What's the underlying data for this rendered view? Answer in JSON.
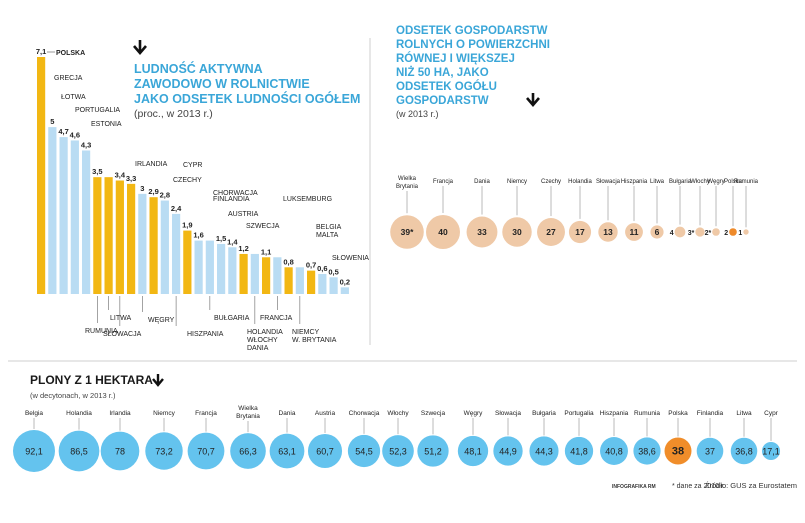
{
  "colors": {
    "blue_bar": "#b9dcf3",
    "gold_bar": "#f2b713",
    "title_blue": "#3aa6d8",
    "bubble_tan": "#efc9a7",
    "bubble_tan_text": "#8a5a2c",
    "bubble_orange": "#ee8a2a",
    "bubble_blue": "#64c3ee",
    "bubble_blue_text": "#0d3a55",
    "highlight_orange": "#f08d2a"
  },
  "icons": {
    "title_arrow": "arrow-down-icon"
  },
  "chart_data": [
    {
      "id": "ludnosc",
      "type": "bar",
      "title_lines": [
        "LUDNOŚĆ AKTYWNA",
        "ZAWODOWO W ROLNICTWIE",
        "JAKO ODSETEK LUDNOŚCI OGÓŁEM"
      ],
      "subtitle": "(proc., w 2013 r.)",
      "ylim": [
        0,
        7.5
      ],
      "categories": [
        "POLSKA",
        "GRECJA",
        "ŁOTWA",
        "PORTUGALIA",
        "ESTONIA",
        "RUMUNIA",
        "LITWA",
        "SŁOWACJA",
        "IRLANDIA",
        "WĘGRY",
        "CZECHY",
        "CYPR",
        "HISZPANIA",
        "CHORWACJA",
        "FINLANDIA",
        "AUSTRIA",
        "BUŁGARIA",
        "SZWECJA",
        "HOLANDIA",
        "WŁOCHY",
        "DANIA",
        "FRANCJA",
        "NIEMCY",
        "W. BRYTANIA",
        "LUKSEMBURG",
        "BELGIA",
        "MALTA",
        "SŁOWENIA"
      ],
      "values": [
        7.1,
        5,
        4.7,
        4.6,
        4.3,
        3.5,
        3.5,
        3.4,
        3.3,
        3,
        2.9,
        2.8,
        2.4,
        1.9,
        1.6,
        1.6,
        1.5,
        1.4,
        1.2,
        1.2,
        1.1,
        1.1,
        0.8,
        0.8,
        0.7,
        0.6,
        0.5,
        0.2
      ],
      "value_labels": [
        "7,1",
        "5",
        "4,7",
        "4,6",
        "4,3",
        "3,5",
        "",
        "3,4",
        "3,3",
        "3",
        "2,9",
        "2,8",
        "2,4",
        "1,9",
        "1,6",
        "",
        "1,5",
        "1,4",
        "1,2",
        "",
        "1,1",
        "",
        "0,8",
        "",
        "0,7",
        "0,6",
        "0,5",
        "0,2"
      ],
      "highlight": [
        true,
        false,
        false,
        false,
        false,
        true,
        true,
        true,
        true,
        false,
        true,
        false,
        false,
        true,
        false,
        false,
        false,
        false,
        true,
        false,
        true,
        false,
        true,
        false,
        true,
        false,
        false,
        false
      ],
      "above_labels": [
        {
          "text": "POLSKA",
          "bar": 0
        },
        {
          "text": "GRECJA",
          "bar": 1
        },
        {
          "text": "ŁOTWA",
          "bar": 2
        },
        {
          "text": "PORTUGALIA",
          "bar": 3
        },
        {
          "text": "ESTONIA",
          "bar": 4
        },
        {
          "text": "IRLANDIA",
          "bar": 8
        },
        {
          "text": "CYPR",
          "bar": 11
        },
        {
          "text": "CZECHY",
          "bar": 10
        },
        {
          "text": "CHORWACJA",
          "bar": 14
        },
        {
          "text": "FINLANDIA",
          "bar": 14
        },
        {
          "text": "AUSTRIA",
          "bar": 16
        },
        {
          "text": "SZWECJA",
          "bar": 17
        },
        {
          "text": "LUKSEMBURG",
          "bar": 24
        },
        {
          "text": "BELGIA",
          "bar": 26
        },
        {
          "text": "MALTA",
          "bar": 26
        },
        {
          "text": "SŁOWENIA",
          "bar": 27
        }
      ],
      "below_labels": [
        {
          "text": "RUMUNIA",
          "bar": 5
        },
        {
          "text": "LITWA",
          "bar": 6
        },
        {
          "text": "SŁOWACJA",
          "bar": 7
        },
        {
          "text": "WĘGRY",
          "bar": 9
        },
        {
          "text": "HISZPANIA",
          "bar": 12
        },
        {
          "text": "BUŁGARIA",
          "bar": 15
        },
        {
          "text": "HOLANDIA",
          "bar": 19
        },
        {
          "text": "WŁOCHY",
          "bar": 19
        },
        {
          "text": "DANIA",
          "bar": 19
        },
        {
          "text": "FRANCJA",
          "bar": 21
        },
        {
          "text": "NIEMCY",
          "bar": 23
        },
        {
          "text": "W. BRYTANIA",
          "bar": 23
        }
      ]
    },
    {
      "id": "gospodarstwa",
      "type": "scatter",
      "title_lines": [
        "ODSETEK GOSPODARSTW",
        "ROLNYCH O POWIERZCHNI",
        "RÓWNEJ I WIĘKSZEJ",
        "NIŻ 50 HA, JAKO",
        "ODSETEK OGÓŁU",
        "GOSPODARSTW"
      ],
      "subtitle": "(w 2013 r.)",
      "categories": [
        "Wielka Brytania",
        "Francja",
        "Dania",
        "Niemcy",
        "Czechy",
        "Holandia",
        "Słowacja",
        "Hiszpania",
        "Litwa",
        "Bułgaria",
        "Włochy",
        "Węgry",
        "Polska",
        "Rumunia"
      ],
      "category_lines": [
        [
          "Wielka",
          "Brytania"
        ],
        [
          "Francja"
        ],
        [
          "Dania"
        ],
        [
          "Niemcy"
        ],
        [
          "Czechy"
        ],
        [
          "Holandia"
        ],
        [
          "Słowacja"
        ],
        [
          "Hiszpania"
        ],
        [
          "Litwa"
        ],
        [
          "Bułgaria"
        ],
        [
          "Włochy"
        ],
        [
          "Węgry"
        ],
        [
          "Polska"
        ],
        [
          "Rumunia"
        ]
      ],
      "values": [
        39,
        40,
        33,
        30,
        27,
        17,
        13,
        11,
        6,
        4,
        3,
        2,
        2,
        1
      ],
      "value_labels": [
        "39*",
        "40",
        "33",
        "30",
        "27",
        "17",
        "13",
        "11",
        "6",
        "4",
        "3*",
        "2*",
        "2",
        "1"
      ],
      "highlight": [
        false,
        false,
        false,
        false,
        false,
        false,
        false,
        false,
        false,
        false,
        false,
        false,
        true,
        false
      ]
    },
    {
      "id": "plony",
      "type": "scatter",
      "title": "PLONY Z 1 HEKTARA",
      "subtitle": "(w decytonach, w 2013 r.)",
      "categories": [
        "Belgia",
        "Holandia",
        "Irlandia",
        "Niemcy",
        "Francja",
        "Wielka Brytania",
        "Dania",
        "Austria",
        "Chorwacja",
        "Włochy",
        "Szwecja",
        "Węgry",
        "Słowacja",
        "Bułgaria",
        "Portugalia",
        "Hiszpania",
        "Rumunia",
        "Polska",
        "Finlandia",
        "Litwa",
        "Cypr"
      ],
      "category_lines": [
        [
          "Belgia"
        ],
        [
          "Holandia"
        ],
        [
          "Irlandia"
        ],
        [
          "Niemcy"
        ],
        [
          "Francja"
        ],
        [
          "Wielka",
          "Brytania"
        ],
        [
          "Dania"
        ],
        [
          "Austria"
        ],
        [
          "Chorwacja"
        ],
        [
          "Włochy"
        ],
        [
          "Szwecja"
        ],
        [
          "Węgry"
        ],
        [
          "Słowacja"
        ],
        [
          "Bułgaria"
        ],
        [
          "Portugalia"
        ],
        [
          "Hiszpania"
        ],
        [
          "Rumunia"
        ],
        [
          "Polska"
        ],
        [
          "Finlandia"
        ],
        [
          "Litwa"
        ],
        [
          "Cypr"
        ]
      ],
      "values": [
        92.1,
        86.5,
        78,
        73.2,
        70.7,
        66.3,
        63.1,
        60.7,
        54.5,
        52.3,
        51.2,
        48.1,
        44.9,
        44.3,
        41.8,
        40.8,
        38.6,
        38,
        37,
        36.8,
        17.1
      ],
      "value_labels": [
        "92,1",
        "86,5",
        "78",
        "73,2",
        "70,7",
        "66,3",
        "63,1",
        "60,7",
        "54,5",
        "52,3",
        "51,2",
        "48,1",
        "44,9",
        "44,3",
        "41,8",
        "40,8",
        "38,6",
        "38",
        "37",
        "36,8",
        "17,1"
      ],
      "highlight": [
        false,
        false,
        false,
        false,
        false,
        false,
        false,
        false,
        false,
        false,
        false,
        false,
        false,
        false,
        false,
        false,
        false,
        true,
        false,
        false,
        false
      ]
    }
  ],
  "footer": {
    "credit": "INFOGRAFIKA RM",
    "note": "* dane za 2010 r.",
    "source": "Źródło: GUS za Eurostatem"
  }
}
